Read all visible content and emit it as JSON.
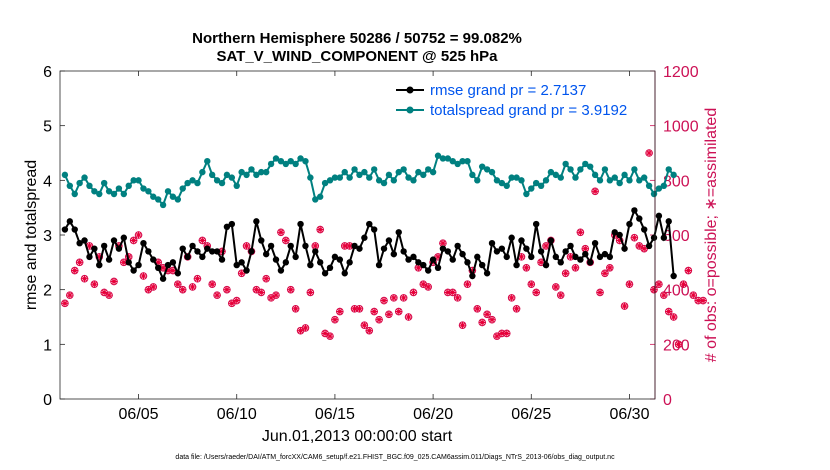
{
  "chart_data": {
    "type": "line",
    "title_line1": "Northern Hemisphere 50286 / 50752 = 99.082%",
    "title_line2": "SAT_V_WIND_COMPONENT @ 525 hPa",
    "xlabel": "Jun.01,2013 00:00:00 start",
    "ylabel": "rmse and totalspread",
    "y2label": "# of obs: o=possible; ∗=assimilated",
    "xlim": [
      1,
      31.3
    ],
    "ylim": [
      0,
      6
    ],
    "y2lim": [
      0,
      1200
    ],
    "x_ticks": [
      5,
      10,
      15,
      20,
      25,
      30
    ],
    "x_tick_labels": [
      "06/05",
      "06/10",
      "06/15",
      "06/20",
      "06/25",
      "06/30"
    ],
    "y_ticks": [
      "0",
      "1",
      "2",
      "3",
      "4",
      "5",
      "6"
    ],
    "y2_ticks": [
      "0",
      "200",
      "400",
      "600",
      "800",
      "1000",
      "1200"
    ],
    "t_start": 1.25,
    "t_step": 0.25,
    "series": [
      {
        "name": "rmse grand pr = 2.7137",
        "color": "#000000",
        "axis": "left",
        "values": [
          3.1,
          3.25,
          3.1,
          2.85,
          2.9,
          2.6,
          2.75,
          2.45,
          2.8,
          2.55,
          2.9,
          2.75,
          2.95,
          2.5,
          2.35,
          2.45,
          2.85,
          2.7,
          2.55,
          2.4,
          2.2,
          2.45,
          2.5,
          2.3,
          2.75,
          2.6,
          2.8,
          2.7,
          2.6,
          2.75,
          2.7,
          2.7,
          2.55,
          3.15,
          3.2,
          2.45,
          2.5,
          2.35,
          2.7,
          3.25,
          2.9,
          2.65,
          2.8,
          2.55,
          2.35,
          2.5,
          2.8,
          2.6,
          3.2,
          2.8,
          2.45,
          2.7,
          2.5,
          2.3,
          2.4,
          2.6,
          2.55,
          2.3,
          2.5,
          2.8,
          2.75,
          2.95,
          3.2,
          3.1,
          2.45,
          2.75,
          2.9,
          2.65,
          3.05,
          2.7,
          2.55,
          2.6,
          2.5,
          2.45,
          2.35,
          2.55,
          2.4,
          2.75,
          2.7,
          2.55,
          2.8,
          2.65,
          2.5,
          2.25,
          2.6,
          2.45,
          2.3,
          2.85,
          2.7,
          2.75,
          2.6,
          2.95,
          2.45,
          2.9,
          2.75,
          2.6,
          3.2,
          2.7,
          2.45,
          2.9,
          2.6,
          2.5,
          2.7,
          2.8,
          2.6,
          2.55,
          2.65,
          2.5,
          2.85,
          2.6,
          2.65,
          2.6,
          3.05,
          3.0,
          2.75,
          3.2,
          3.45,
          3.3,
          3.1,
          2.8,
          2.95,
          3.35,
          2.95,
          3.25,
          2.25
        ],
        "markers": "filled-circle"
      },
      {
        "name": "totalspread grand pr = 3.9192",
        "color": "#008080",
        "axis": "left",
        "values": [
          4.1,
          3.9,
          3.75,
          3.95,
          4.05,
          3.9,
          3.8,
          3.75,
          3.95,
          3.8,
          3.75,
          3.85,
          3.75,
          3.9,
          4.0,
          4.0,
          3.85,
          3.8,
          3.7,
          3.65,
          3.55,
          3.8,
          3.7,
          3.65,
          3.85,
          3.95,
          4.0,
          3.95,
          4.15,
          4.35,
          4.1,
          4.0,
          3.95,
          4.1,
          4.05,
          3.9,
          4.15,
          4.1,
          4.2,
          4.1,
          4.15,
          4.15,
          4.3,
          4.4,
          4.35,
          4.3,
          4.35,
          4.3,
          4.4,
          4.35,
          4.05,
          3.65,
          3.7,
          3.95,
          4.0,
          4.05,
          4.05,
          4.15,
          4.05,
          4.2,
          4.1,
          4.15,
          4.05,
          4.2,
          4.0,
          3.95,
          4.1,
          4.0,
          4.15,
          4.2,
          4.05,
          4.0,
          4.15,
          4.1,
          4.2,
          4.15,
          4.45,
          4.4,
          4.4,
          4.35,
          4.3,
          4.35,
          4.35,
          4.1,
          4.0,
          4.25,
          4.2,
          4.15,
          4.0,
          3.95,
          3.9,
          4.05,
          4.05,
          4.0,
          3.75,
          3.85,
          3.95,
          3.9,
          4.0,
          4.15,
          4.1,
          4.05,
          4.3,
          4.2,
          4.05,
          4.2,
          4.3,
          4.25,
          4.1,
          4.0,
          4.2,
          4.0,
          4.05,
          3.95,
          4.1,
          4.0,
          4.2,
          4.0,
          4.05,
          3.9,
          3.75,
          3.85,
          3.9,
          4.2,
          4.1
        ],
        "markers": "filled-circle"
      },
      {
        "name": "obs possible",
        "color": "#cc1155",
        "axis": "right",
        "values": [
          350,
          380,
          470,
          500,
          440,
          560,
          420,
          520,
          390,
          380,
          430,
          560,
          500,
          520,
          580,
          600,
          450,
          400,
          410,
          500,
          480,
          470,
          470,
          420,
          400,
          520,
          410,
          440,
          580,
          560,
          420,
          380,
          540,
          400,
          350,
          360,
          460,
          560,
          540,
          400,
          390,
          440,
          370,
          380,
          610,
          580,
          400,
          330,
          250,
          260,
          390,
          560,
          620,
          240,
          230,
          290,
          320,
          560,
          560,
          330,
          330,
          270,
          250,
          320,
          290,
          360,
          310,
          370,
          320,
          370,
          300,
          390,
          480,
          420,
          410,
          500,
          520,
          570,
          390,
          390,
          370,
          270,
          420,
          470,
          330,
          280,
          310,
          290,
          230,
          240,
          240,
          370,
          330,
          520,
          480,
          420,
          390,
          500,
          560,
          580,
          410,
          380,
          460,
          520,
          480,
          610,
          550,
          500,
          760,
          390,
          460,
          480,
          600,
          580,
          340,
          420,
          590,
          560,
          550,
          900,
          400,
          420,
          380,
          320,
          300,
          200,
          420,
          470,
          380,
          360,
          360
        ],
        "markers": "circle"
      },
      {
        "name": "obs assimilated",
        "color": "#e8003a",
        "axis": "right",
        "values": [
          350,
          380,
          470,
          500,
          440,
          560,
          420,
          520,
          390,
          380,
          430,
          560,
          500,
          520,
          580,
          600,
          450,
          400,
          410,
          500,
          480,
          470,
          470,
          420,
          400,
          520,
          410,
          440,
          580,
          560,
          420,
          380,
          540,
          400,
          350,
          360,
          460,
          560,
          540,
          400,
          390,
          440,
          370,
          380,
          610,
          580,
          400,
          330,
          250,
          260,
          390,
          560,
          620,
          240,
          230,
          290,
          320,
          560,
          560,
          330,
          330,
          270,
          250,
          320,
          290,
          360,
          310,
          370,
          320,
          370,
          300,
          390,
          480,
          420,
          410,
          500,
          520,
          570,
          390,
          390,
          370,
          270,
          420,
          470,
          330,
          280,
          310,
          290,
          230,
          240,
          240,
          370,
          330,
          520,
          480,
          420,
          390,
          500,
          560,
          580,
          410,
          380,
          460,
          520,
          480,
          610,
          550,
          500,
          760,
          390,
          460,
          480,
          600,
          580,
          340,
          420,
          590,
          560,
          550,
          900,
          400,
          420,
          380,
          320,
          300,
          200,
          420,
          470,
          380,
          360,
          360
        ],
        "markers": "asterisk"
      }
    ],
    "legend": {
      "location": "top-right",
      "items": [
        "rmse grand pr = 2.7137",
        "totalspread grand pr = 3.9192"
      ],
      "text_color": "#0055ee"
    }
  },
  "footer": {
    "data_file": "data file: /Users/raeder/DAI/ATM_forcXX/CAM6_setup/f.e21.FHIST_BGC.f09_025.CAM6assim.011/Diags_NTrS_2013-06/obs_diag_output.nc"
  },
  "colors": {
    "left_axis": "#000000",
    "right_axis": "#cc1155",
    "rmse": "#000000",
    "totalspread": "#008080",
    "obs": "#cc1155",
    "legend_text": "#0055ee"
  }
}
